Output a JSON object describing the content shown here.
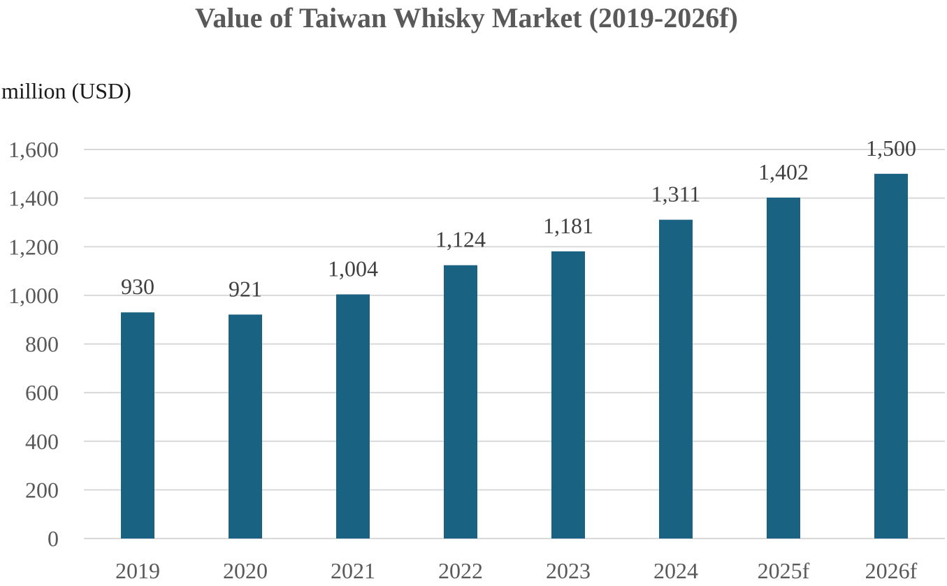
{
  "chart_data": {
    "type": "bar",
    "title": "Value of Taiwan Whisky Market (2019-2026f)",
    "ylabel": "million (USD)",
    "xlabel": "",
    "categories": [
      "2019",
      "2020",
      "2021",
      "2022",
      "2023",
      "2024",
      "2025f",
      "2026f"
    ],
    "values": [
      930,
      921,
      1004,
      1124,
      1181,
      1311,
      1402,
      1500
    ],
    "data_labels": [
      "930",
      "921",
      "1,004",
      "1,124",
      "1,181",
      "1,311",
      "1,402",
      "1,500"
    ],
    "yticks": [
      0,
      200,
      400,
      600,
      800,
      1000,
      1200,
      1400,
      1600
    ],
    "ytick_labels": [
      "0",
      "200",
      "400",
      "600",
      "800",
      "1,000",
      "1,200",
      "1,400",
      "1,600"
    ],
    "ylim": [
      0,
      1600
    ],
    "grid": true,
    "legend": "none",
    "bar_color": "#1a6282",
    "grid_color": "#d9d9d9"
  }
}
